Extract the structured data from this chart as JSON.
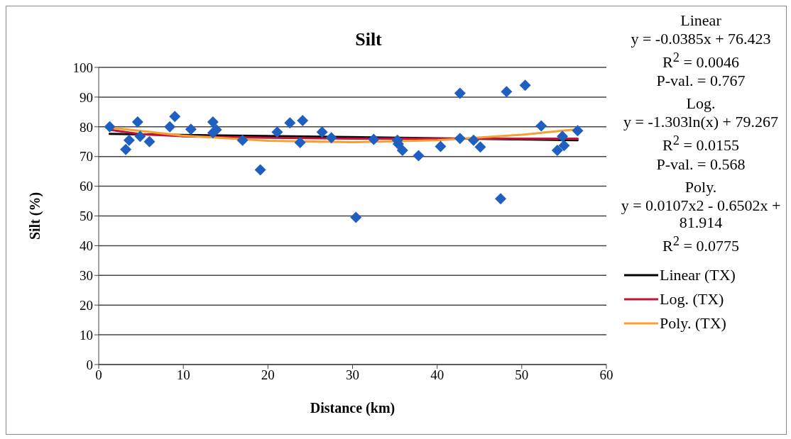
{
  "chart_data": {
    "type": "scatter",
    "title": "Silt",
    "xlabel": "Distance (km)",
    "ylabel": "Silt (%)",
    "xlim": [
      0,
      60
    ],
    "xticks": [
      0,
      10,
      20,
      30,
      40,
      50,
      60
    ],
    "ylim": [
      0,
      100
    ],
    "yticks": [
      0,
      10,
      20,
      30,
      40,
      50,
      60,
      70,
      80,
      90,
      100
    ],
    "grid": "y",
    "legend": "right",
    "annotations": [
      "Linear",
      "y = -0.0385x + 76.423",
      "R$^{2}$ = 0.0046",
      "P-val. = 0.767",
      "Log.",
      "y = -1.303ln(x) + 79.267",
      "R$^{2}$ = 0.0155",
      "P-val. = 0.568",
      "Poly.",
      "y = 0.0107x2 - 0.6502x + 81.914",
      "R$^{2}$ = 0.0775"
    ],
    "series": [
      {
        "marker": "diamond",
        "color": "#1f5fbf",
        "x": [
          1.3,
          3.2,
          3.6,
          4.6,
          4.9,
          6.0,
          8.4,
          9.0,
          10.9,
          13.5,
          13.9,
          13.5,
          17.0,
          19.1,
          21.1,
          22.6,
          24.1,
          23.8,
          26.4,
          27.5,
          30.4,
          32.5,
          35.3,
          35.9,
          35.4,
          37.8,
          40.4,
          42.7,
          42.7,
          44.3,
          45.1,
          47.5,
          48.2,
          50.4,
          52.3,
          54.2,
          54.8,
          55.0,
          56.6
        ],
        "values": [
          80.0,
          72.4,
          75.5,
          81.6,
          76.8,
          75.0,
          80.0,
          83.5,
          79.2,
          81.6,
          79.0,
          78.0,
          75.5,
          65.5,
          78.2,
          81.3,
          82.1,
          74.7,
          78.2,
          76.3,
          49.5,
          75.8,
          75.5,
          72.1,
          74.2,
          70.3,
          73.4,
          91.3,
          76.1,
          75.5,
          73.2,
          55.8,
          91.8,
          94.0,
          80.3,
          72.1,
          76.8,
          73.7,
          78.7
        ]
      },
      {
        "type": "line",
        "marker": "none",
        "name": "Linear (TX)",
        "color": "#000000",
        "x": [
          1.3,
          56.6
        ],
        "values": [
          77.6,
          75.5
        ]
      },
      {
        "type": "line",
        "marker": "none",
        "name": "Log. (TX)",
        "color": "#c0143c",
        "x": [
          1.3,
          5,
          10,
          20,
          30,
          40,
          56.6
        ],
        "values": [
          79.0,
          77.5,
          76.8,
          76.3,
          76.0,
          76.0,
          76.0
        ]
      },
      {
        "type": "line",
        "marker": "none",
        "name": "Poly. (TX)",
        "color": "#f5a030",
        "x": [
          1.3,
          10,
          20,
          30,
          40,
          50,
          56.6
        ],
        "values": [
          79.8,
          77.0,
          75.3,
          74.8,
          75.5,
          77.3,
          79.2
        ]
      }
    ]
  }
}
